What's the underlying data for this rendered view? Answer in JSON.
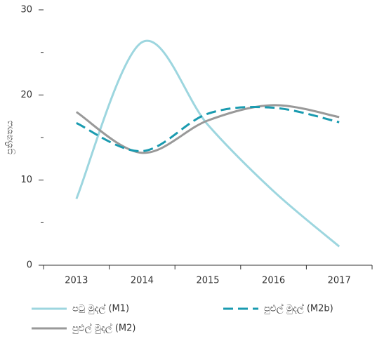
{
  "chart_data": {
    "type": "line",
    "y_label": "ප්‍රතිශතය",
    "categories": [
      "2013",
      "2014",
      "2015",
      "2016",
      "2017"
    ],
    "series": [
      {
        "name": "පටු මුදල් (M1)",
        "color": "#9dd6df",
        "dash": false,
        "values": [
          7.8,
          26.2,
          16.5,
          8.7,
          2.2
        ]
      },
      {
        "name": "පුළුල් මුදල් (M2)",
        "color": "#999999",
        "dash": false,
        "values": [
          18.0,
          13.2,
          17.0,
          18.8,
          17.4
        ]
      },
      {
        "name": "පුළුල් මුදල් (M2b)",
        "color": "#1a9bb0",
        "dash": true,
        "values": [
          16.7,
          13.4,
          17.8,
          18.5,
          16.8
        ]
      }
    ],
    "ylim": [
      0,
      30
    ],
    "yticks": [
      0,
      10,
      20,
      30
    ],
    "yminor_ticks": [
      5,
      15,
      25
    ],
    "smooth": true
  }
}
